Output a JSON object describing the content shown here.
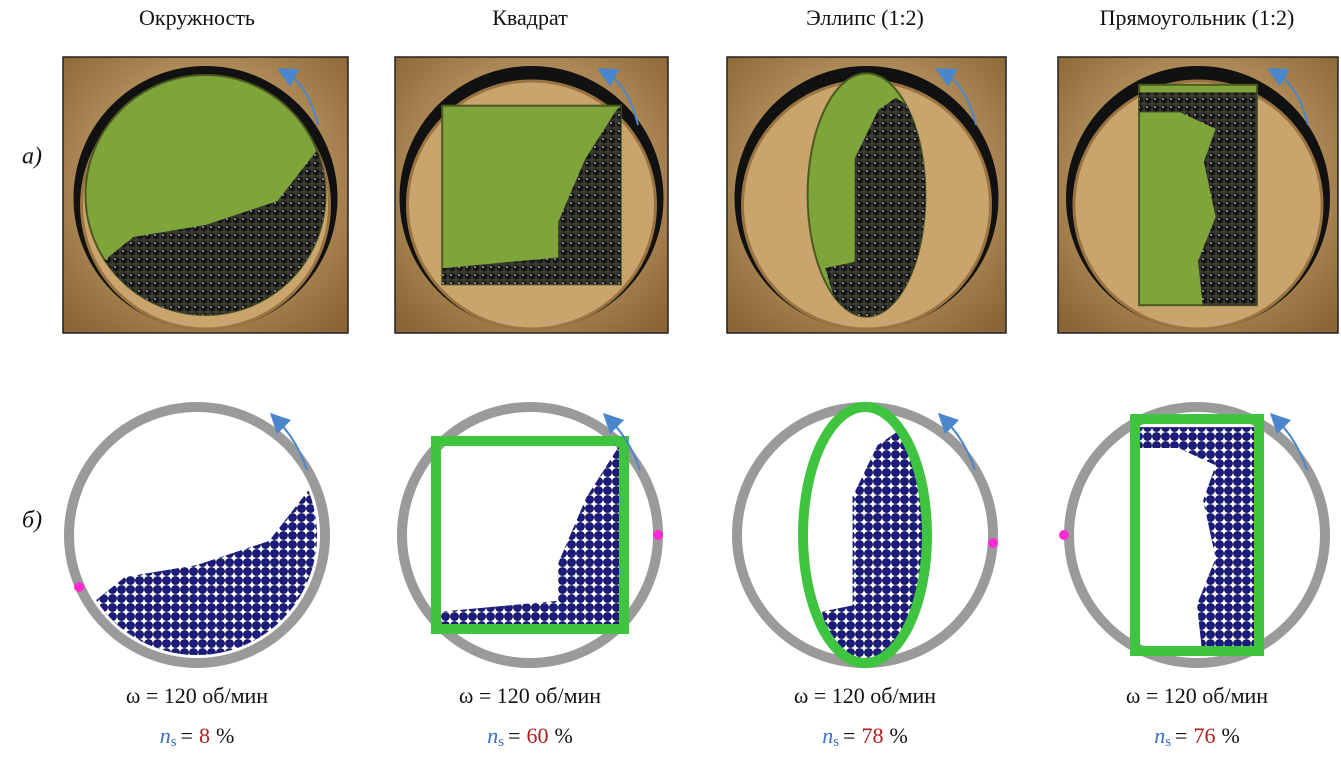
{
  "rows": [
    "а)",
    "б)"
  ],
  "columns": [
    {
      "title": "Окружность",
      "omega": "ω = 120 об/мин",
      "n": "n",
      "s": "s",
      "eq": "=",
      "ns": 8,
      "unit": "%"
    },
    {
      "title": "Квадрат",
      "omega": "ω = 120 об/мин",
      "n": "n",
      "s": "s",
      "eq": "=",
      "ns": 60,
      "unit": "%"
    },
    {
      "title": "Эллипс (1:2)",
      "omega": "ω = 120 об/мин",
      "n": "n",
      "s": "s",
      "eq": "=",
      "ns": 78,
      "unit": "%"
    },
    {
      "title": "Прямоугольник (1:2)",
      "omega": "ω = 120 об/мин",
      "n": "n",
      "s": "s",
      "eq": "=",
      "ns": 76,
      "unit": "%"
    }
  ]
}
